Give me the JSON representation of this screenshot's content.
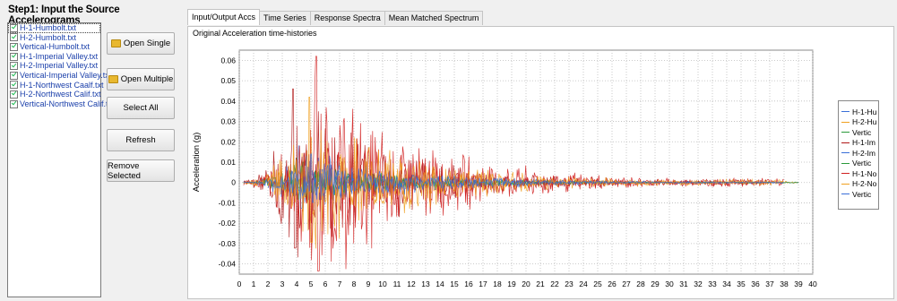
{
  "left_panel": {
    "title": "Step1: Input the Source Accelerograms",
    "files": [
      "H-1-Humbolt.txt",
      "H-2-Humbolt.txt",
      "Vertical-Humbolt.txt",
      "H-1-Imperial Valley.txt",
      "H-2-Imperial Valley.txt",
      "Vertical-Imperial Valley.txt",
      "H-1-Northwest Caalf.txt",
      "H-2-Northwest Calif.txt",
      "Vertical-Northwest Calif.txt"
    ],
    "buttons": {
      "open_single": "Open Single",
      "open_multiple": "Open Multiple",
      "select_all": "Select All",
      "refresh": "Refresh",
      "remove_selected": "Remove Selected"
    }
  },
  "tabs": [
    "Input/Output Accs",
    "Time Series",
    "Response Spectra",
    "Mean Matched Spectrum"
  ],
  "active_tab": 0,
  "panel": {
    "subtitle": "Original Acceleration time-histories"
  },
  "chart_data": {
    "type": "line",
    "ylabel": "Acceleration (g)",
    "xlabel": "",
    "xlim": [
      0,
      40
    ],
    "ylim": [
      -0.045,
      0.065
    ],
    "yticks": [
      -0.04,
      -0.03,
      -0.02,
      -0.01,
      0,
      0.01,
      0.02,
      0.03,
      0.04,
      0.05,
      0.06
    ],
    "ytick_labels": [
      "-0.04",
      "-0.03",
      "-0.02",
      "-0.01",
      "0",
      "0.01",
      "0.02",
      "0.03",
      "0.04",
      "0.05",
      "0.06"
    ],
    "xticks": [
      0,
      1,
      2,
      3,
      4,
      5,
      6,
      7,
      8,
      9,
      10,
      11,
      12,
      13,
      14,
      15,
      16,
      17,
      18,
      19,
      20,
      21,
      22,
      23,
      24,
      25,
      26,
      27,
      28,
      29,
      30,
      31,
      32,
      33,
      34,
      35,
      36,
      37,
      38,
      39,
      40
    ],
    "grid": true,
    "legend_position": "right",
    "series": [
      {
        "name": "H-1-Hu",
        "color": "#3a6fd8",
        "peak": 0.012,
        "peak_time": 5.5,
        "end": 39
      },
      {
        "name": "H-2-Hu",
        "color": "#f0a020",
        "peak": 0.022,
        "peak_time": 5.0,
        "end": 39
      },
      {
        "name": "Vertic",
        "color": "#2a9a3a",
        "peak": 0.01,
        "peak_time": 4.5,
        "end": 39
      },
      {
        "name": "H-1-Im",
        "color": "#b01818",
        "peak": 0.046,
        "peak_time": 3.8,
        "end": 37
      },
      {
        "name": "H-2-Im",
        "color": "#3a6fd8",
        "peak": 0.018,
        "peak_time": 4.2,
        "end": 37
      },
      {
        "name": "Vertic",
        "color": "#2a9a3a",
        "peak": 0.012,
        "peak_time": 4.0,
        "end": 37
      },
      {
        "name": "H-1-No",
        "color": "#d02020",
        "peak": 0.062,
        "peak_time": 5.4,
        "end": 38
      },
      {
        "name": "H-2-No",
        "color": "#f0a020",
        "peak": 0.042,
        "peak_time": 4.9,
        "end": 38
      },
      {
        "name": "Vertic",
        "color": "#3a6fd8",
        "peak": 0.014,
        "peak_time": 5.0,
        "end": 38
      }
    ]
  }
}
